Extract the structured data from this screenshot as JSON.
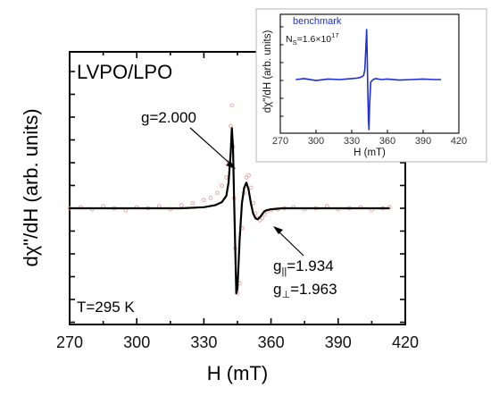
{
  "chart_data": [
    {
      "type": "line",
      "title": "LVPO/LPO",
      "xlabel": "H (mT)",
      "ylabel": "dχ\"/dH (arb. units)",
      "xlim": [
        270,
        420
      ],
      "ylim": [
        -1.0,
        1.0
      ],
      "x_ticks": [
        "270",
        "300",
        "330",
        "360",
        "390",
        "420"
      ],
      "series": [
        {
          "kind": "experimental-scatter",
          "color": "#e8a0a0",
          "x": [
            270,
            275,
            280,
            285,
            290,
            295,
            300,
            305,
            310,
            315,
            320,
            325,
            330,
            333,
            336,
            338,
            340,
            341,
            342,
            342.5,
            343,
            343.5,
            344,
            345,
            346,
            347,
            348,
            349,
            350,
            351,
            352,
            353,
            354,
            355,
            356,
            357,
            358,
            360,
            363,
            366,
            370,
            375,
            380,
            385,
            390,
            395,
            400,
            405,
            410,
            413
          ],
          "y": [
            0.0,
            0.01,
            -0.01,
            0.02,
            0.0,
            -0.02,
            0.01,
            0.0,
            0.02,
            -0.01,
            0.03,
            0.05,
            0.08,
            0.1,
            0.15,
            0.22,
            0.3,
            0.45,
            0.8,
            1.0,
            0.6,
            0.1,
            -0.4,
            -0.85,
            -0.75,
            -0.2,
            0.15,
            0.3,
            0.32,
            0.2,
            0.05,
            -0.05,
            -0.1,
            -0.12,
            -0.1,
            -0.06,
            -0.03,
            -0.02,
            -0.01,
            0.0,
            0.01,
            -0.01,
            0.0,
            0.02,
            -0.01,
            0.0,
            0.01,
            -0.02,
            0.0,
            0.01
          ]
        },
        {
          "kind": "simulation-line",
          "color": "#000000",
          "x": [
            270,
            280,
            290,
            300,
            310,
            320,
            330,
            335,
            338,
            340,
            341,
            342,
            342.5,
            343,
            343.5,
            344,
            344.5,
            345,
            346,
            347,
            348,
            349,
            350,
            351,
            352,
            353,
            354,
            355,
            356,
            357,
            358,
            360,
            365,
            370,
            380,
            390,
            400,
            410,
            413
          ],
          "y": [
            0.0,
            0.0,
            0.0,
            0.0,
            0.0,
            0.0,
            0.01,
            0.03,
            0.06,
            0.12,
            0.25,
            0.55,
            0.78,
            0.6,
            0.1,
            -0.4,
            -0.85,
            -0.8,
            -0.3,
            0.05,
            0.2,
            0.25,
            0.18,
            0.05,
            -0.05,
            -0.1,
            -0.11,
            -0.09,
            -0.06,
            -0.03,
            -0.02,
            -0.01,
            0.0,
            0.0,
            0.0,
            0.0,
            0.0,
            0.0,
            0.0
          ]
        }
      ],
      "annotations": {
        "g_main": "g=2.000",
        "g_par": "g",
        "g_par_sub": "||",
        "g_par_val": "=1.934",
        "g_perp": "g",
        "g_perp_sub": "⊥",
        "g_perp_val": "=1.963",
        "temperature": "T=295 K"
      },
      "grid": false,
      "legend": "none"
    },
    {
      "type": "line",
      "title": "",
      "xlabel": "H (mT)",
      "ylabel": "dχ\"/dH (arb. units)",
      "xlim": [
        270,
        420
      ],
      "x_ticks": [
        "270",
        "300",
        "330",
        "360",
        "390",
        "420"
      ],
      "series": [
        {
          "name": "benchmark",
          "color": "#1f2fd6",
          "x": [
            283,
            290,
            300,
            310,
            320,
            330,
            335,
            338,
            340,
            341,
            342,
            342.5,
            343,
            343.5,
            344,
            344.5,
            345,
            346,
            348,
            350,
            355,
            360,
            370,
            380,
            390,
            400,
            405
          ],
          "y": [
            0.0,
            0.02,
            -0.02,
            0.01,
            0.0,
            0.02,
            0.03,
            0.05,
            0.08,
            0.2,
            0.7,
            1.0,
            0.5,
            -0.2,
            -0.8,
            -1.0,
            -0.5,
            -0.05,
            0.0,
            0.02,
            0.0,
            0.01,
            -0.01,
            0.0,
            0.01,
            0.0,
            0.0
          ]
        }
      ],
      "annotations": {
        "legend_label": "benchmark",
        "ns_label": "N",
        "ns_sub": "S",
        "ns_val": "=1.6×10",
        "ns_exp": "17"
      },
      "ylim": [
        -1.0,
        1.0
      ]
    }
  ]
}
